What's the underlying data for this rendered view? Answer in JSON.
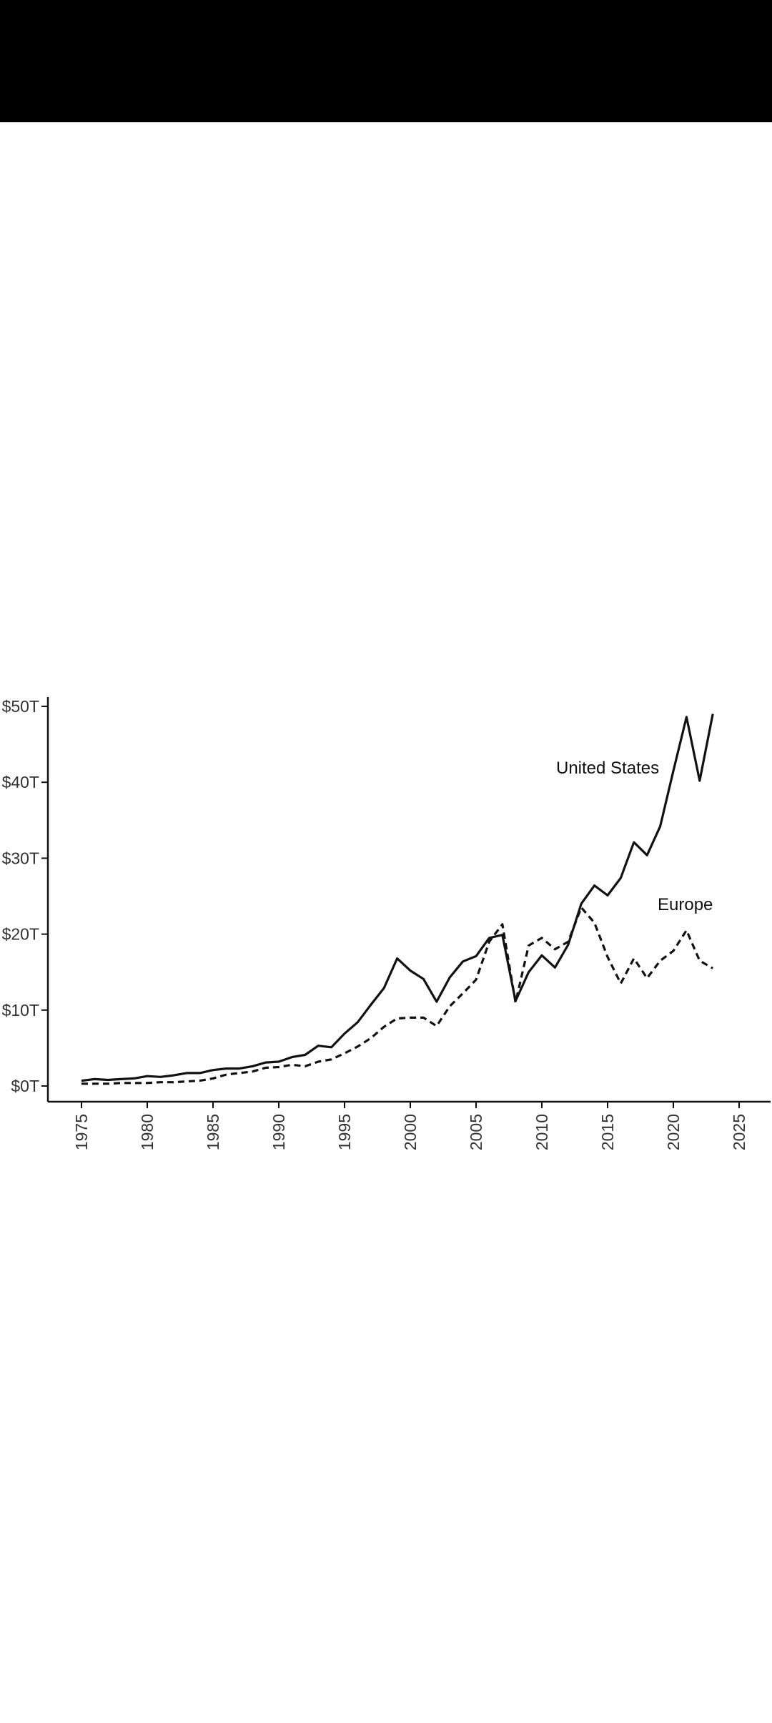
{
  "status_bar": {
    "color": "#000000"
  },
  "chart_data": {
    "type": "line",
    "title": "",
    "xlabel": "",
    "ylabel": "",
    "xlim": [
      1973,
      2027
    ],
    "ylim": [
      0,
      50
    ],
    "x_ticks": [
      1975,
      1980,
      1985,
      1990,
      1995,
      2000,
      2005,
      2010,
      2015,
      2020,
      2025
    ],
    "x_tick_labels": [
      "1975",
      "1980",
      "1985",
      "1990",
      "1995",
      "2000",
      "2005",
      "2010",
      "2015",
      "2020",
      "2025"
    ],
    "y_ticks": [
      0,
      10,
      20,
      30,
      40,
      50
    ],
    "y_tick_labels": [
      "$0T",
      "$10T",
      "$20T",
      "$30T",
      "$40T",
      "$50T"
    ],
    "grid": false,
    "legend": "none",
    "x": [
      1975,
      1976,
      1977,
      1978,
      1979,
      1980,
      1981,
      1982,
      1983,
      1984,
      1985,
      1986,
      1987,
      1988,
      1989,
      1990,
      1991,
      1992,
      1993,
      1994,
      1995,
      1996,
      1997,
      1998,
      1999,
      2000,
      2001,
      2002,
      2003,
      2004,
      2005,
      2006,
      2007,
      2008,
      2009,
      2010,
      2011,
      2012,
      2013,
      2014,
      2015,
      2016,
      2017,
      2018,
      2019,
      2020,
      2021,
      2022,
      2023
    ],
    "series": [
      {
        "name": "United States",
        "style": "solid",
        "color": "#111111",
        "values": [
          0.7,
          0.9,
          0.8,
          0.9,
          1.0,
          1.3,
          1.2,
          1.4,
          1.7,
          1.7,
          2.1,
          2.3,
          2.3,
          2.6,
          3.1,
          3.2,
          3.8,
          4.1,
          5.3,
          5.1,
          6.9,
          8.4,
          10.7,
          12.9,
          16.8,
          15.2,
          14.1,
          11.1,
          14.3,
          16.4,
          17.1,
          19.5,
          19.9,
          11.2,
          15.0,
          17.2,
          15.6,
          18.6,
          24.0,
          26.4,
          25.1,
          27.4,
          32.1,
          30.4,
          34.2,
          41.5,
          48.6,
          40.2,
          49.0
        ]
      },
      {
        "name": "Europe",
        "style": "dashed",
        "color": "#111111",
        "values": [
          0.3,
          0.3,
          0.3,
          0.4,
          0.4,
          0.4,
          0.5,
          0.5,
          0.6,
          0.7,
          1.0,
          1.5,
          1.7,
          1.9,
          2.4,
          2.5,
          2.8,
          2.6,
          3.2,
          3.5,
          4.3,
          5.2,
          6.3,
          7.8,
          8.9,
          9.0,
          9.0,
          7.9,
          10.5,
          12.2,
          14.0,
          19.0,
          21.3,
          11.0,
          18.5,
          19.5,
          18.0,
          19.0,
          23.5,
          21.5,
          17.0,
          13.5,
          16.8,
          14.2,
          16.5,
          17.8,
          20.5,
          16.5,
          15.5
        ]
      }
    ],
    "annotations": [
      "United States",
      "Europe"
    ]
  }
}
